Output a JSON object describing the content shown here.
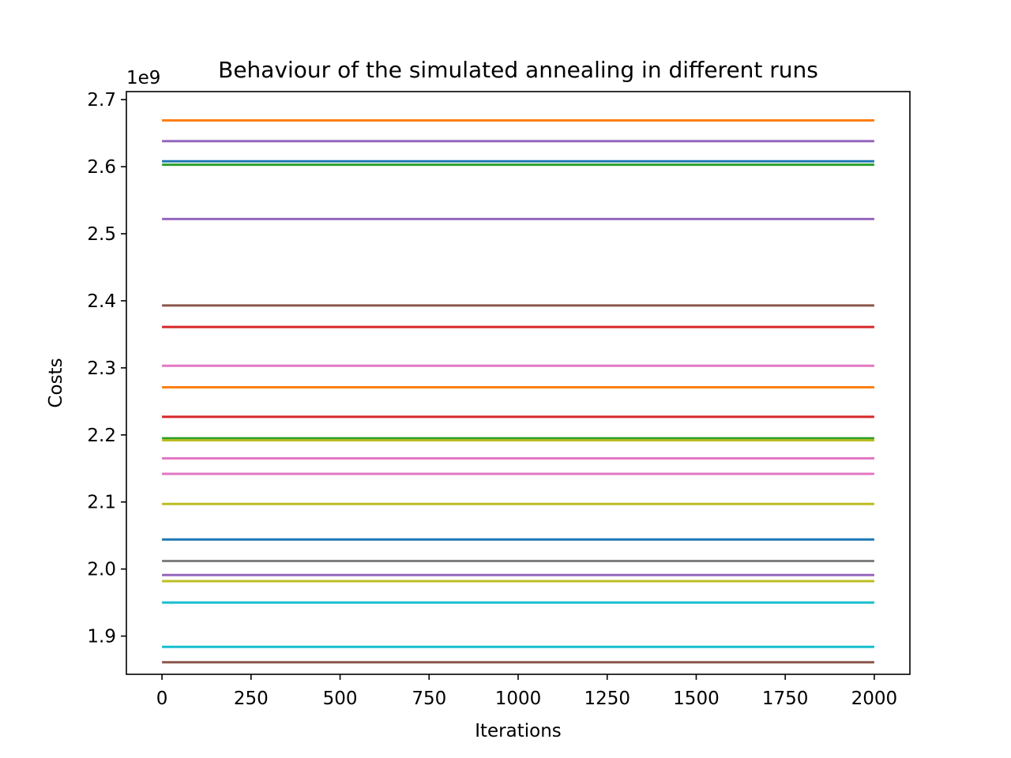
{
  "chart_data": {
    "type": "line",
    "title": "Behaviour of the simulated annealing in different runs",
    "xlabel": "Iterations",
    "ylabel": "Costs",
    "y_offset_label": "1e9",
    "xlim": [
      -100,
      2100
    ],
    "ylim": [
      1.843,
      2.712
    ],
    "x_ticks": [
      0,
      250,
      500,
      750,
      1000,
      1250,
      1500,
      1750,
      2000
    ],
    "x_tick_labels": [
      "0",
      "250",
      "500",
      "750",
      "1000",
      "1250",
      "1500",
      "1750",
      "2000"
    ],
    "y_ticks": [
      1.9,
      2.0,
      2.1,
      2.2,
      2.3,
      2.4,
      2.5,
      2.6,
      2.7
    ],
    "y_tick_labels": [
      "1.9",
      "2.0",
      "2.1",
      "2.2",
      "2.3",
      "2.4",
      "2.5",
      "2.6",
      "2.7"
    ],
    "grid": false,
    "legend": false,
    "x": [
      0,
      2000
    ],
    "series": [
      {
        "color": "#ff7f0e",
        "values": [
          2.669,
          2.669
        ]
      },
      {
        "color": "#9467bd",
        "values": [
          2.638,
          2.638
        ]
      },
      {
        "color": "#1f77b4",
        "values": [
          2.608,
          2.608
        ]
      },
      {
        "color": "#2ca02c",
        "values": [
          2.603,
          2.603
        ]
      },
      {
        "color": "#9467bd",
        "values": [
          2.522,
          2.522
        ]
      },
      {
        "color": "#8c564b",
        "values": [
          2.393,
          2.393
        ]
      },
      {
        "color": "#d62728",
        "values": [
          2.361,
          2.361
        ]
      },
      {
        "color": "#e377c2",
        "values": [
          2.303,
          2.303
        ]
      },
      {
        "color": "#ff7f0e",
        "values": [
          2.271,
          2.271
        ]
      },
      {
        "color": "#d62728",
        "values": [
          2.227,
          2.227
        ]
      },
      {
        "color": "#2ca02c",
        "values": [
          2.195,
          2.195
        ]
      },
      {
        "color": "#bcbd22",
        "values": [
          2.192,
          2.192
        ]
      },
      {
        "color": "#e377c2",
        "values": [
          2.165,
          2.165
        ]
      },
      {
        "color": "#e377c2",
        "values": [
          2.142,
          2.142
        ]
      },
      {
        "color": "#bcbd22",
        "values": [
          2.097,
          2.097
        ]
      },
      {
        "color": "#1f77b4",
        "values": [
          2.044,
          2.044
        ]
      },
      {
        "color": "#7f7f7f",
        "values": [
          2.012,
          2.012
        ]
      },
      {
        "color": "#9467bd",
        "values": [
          1.991,
          1.991
        ]
      },
      {
        "color": "#bcbd22",
        "values": [
          1.982,
          1.982
        ]
      },
      {
        "color": "#17becf",
        "values": [
          1.95,
          1.95
        ]
      },
      {
        "color": "#17becf",
        "values": [
          1.884,
          1.884
        ]
      },
      {
        "color": "#8c564b",
        "values": [
          1.861,
          1.861
        ]
      }
    ]
  }
}
